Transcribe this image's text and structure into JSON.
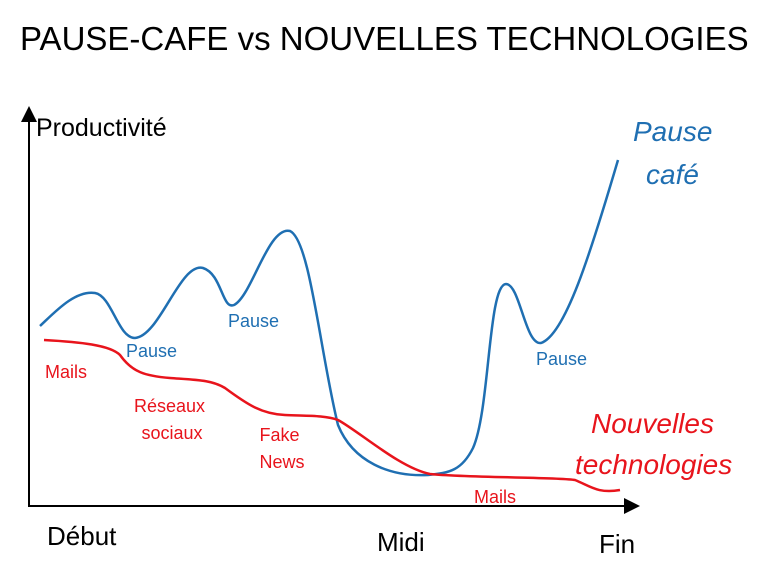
{
  "chart_data": {
    "type": "line",
    "title": "PAUSE-CAFE vs NOUVELLES TECHNOLOGIES",
    "ylabel": "Productivité",
    "x_ticks": [
      "Début",
      "Midi",
      "Fin"
    ],
    "grid": false,
    "series": [
      {
        "name_lines": [
          "Pause",
          "café"
        ],
        "color": "#1f6fb2",
        "annotations": [
          "Pause",
          "Pause",
          "Pause"
        ]
      },
      {
        "name_lines": [
          "Nouvelles",
          "technologies"
        ],
        "color": "#e8141c",
        "annotations": [
          "Mails",
          "Réseaux sociaux",
          "Fake News",
          "Mails"
        ]
      }
    ]
  }
}
